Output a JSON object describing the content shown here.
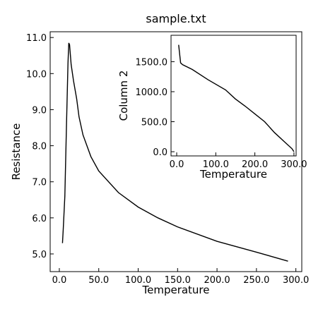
{
  "chart_data": [
    {
      "type": "line",
      "title": "sample.txt",
      "x_label": "Temperature",
      "y_label": "Resistance",
      "x": [
        4,
        5,
        7,
        9,
        11,
        12,
        13,
        15,
        18,
        22,
        25,
        30,
        40,
        50,
        75,
        100,
        125,
        150,
        200,
        250,
        290
      ],
      "series": [
        {
          "name": "Resistance",
          "color": "#000000",
          "values": [
            5.3,
            5.7,
            6.6,
            8.5,
            10.3,
            10.85,
            10.8,
            10.25,
            9.8,
            9.3,
            8.8,
            8.3,
            7.7,
            7.3,
            6.7,
            6.3,
            6.0,
            5.75,
            5.35,
            5.05,
            4.8
          ]
        }
      ],
      "xlim": [
        -11.6,
        307.5
      ],
      "ylim": [
        4.51,
        11.16
      ],
      "xticks": [
        {
          "value": 0,
          "label": "0.0"
        },
        {
          "value": 50,
          "label": "50.0"
        },
        {
          "value": 100,
          "label": "100.0"
        },
        {
          "value": 150,
          "label": "150.0"
        },
        {
          "value": 200,
          "label": "200.0"
        },
        {
          "value": 250,
          "label": "250.0"
        },
        {
          "value": 300,
          "label": "300.0"
        }
      ],
      "yticks": [
        {
          "value": 5,
          "label": "5.0"
        },
        {
          "value": 6,
          "label": "6.0"
        },
        {
          "value": 7,
          "label": "7.0"
        },
        {
          "value": 8,
          "label": "8.0"
        },
        {
          "value": 9,
          "label": "9.0"
        },
        {
          "value": 10,
          "label": "10.0"
        },
        {
          "value": 11,
          "label": "11.0"
        }
      ]
    },
    {
      "type": "line",
      "x_label": "Temperature",
      "y_label": "Column 2",
      "x": [
        5,
        10,
        15,
        40,
        80,
        125,
        150,
        175,
        200,
        225,
        250,
        275,
        295,
        300
      ],
      "series": [
        {
          "name": "Column 2",
          "color": "#000000",
          "values": [
            1780,
            1480,
            1450,
            1370,
            1200,
            1030,
            880,
            760,
            630,
            500,
            320,
            170,
            50,
            0
          ]
        }
      ],
      "xlim": [
        -14.5,
        305.6
      ],
      "ylim": [
        -70,
        1940
      ],
      "xticks": [
        {
          "value": 0,
          "label": "0.0"
        },
        {
          "value": 100,
          "label": "100.0"
        },
        {
          "value": 200,
          "label": "200.0"
        },
        {
          "value": 300,
          "label": "300.0"
        }
      ],
      "yticks": [
        {
          "value": 0,
          "label": "0.0"
        },
        {
          "value": 500,
          "label": "500.0"
        },
        {
          "value": 1000,
          "label": "1000.0"
        },
        {
          "value": 1500,
          "label": "1500.0"
        }
      ]
    }
  ]
}
